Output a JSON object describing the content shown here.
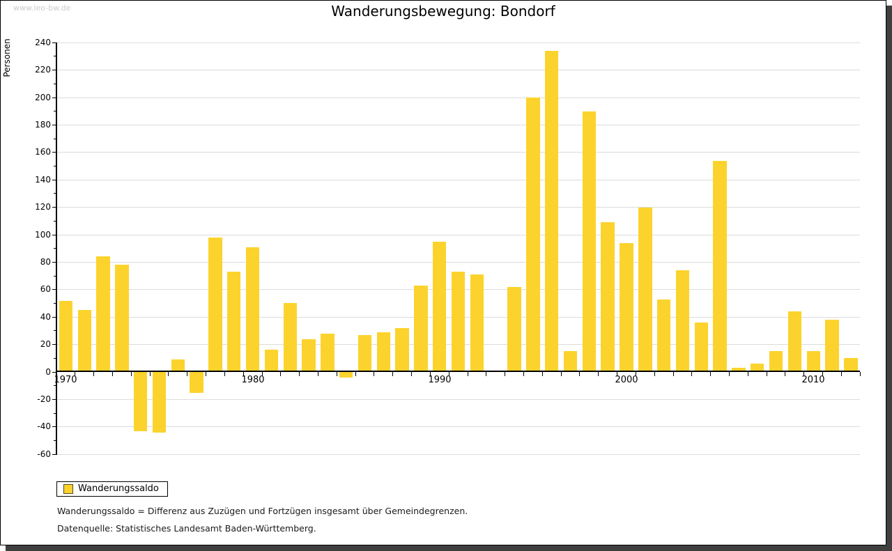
{
  "watermark": "www.leo-bw.de",
  "header": {
    "title": "Wanderungsbewegung: Bondorf"
  },
  "chart_data": {
    "type": "bar",
    "title": "Wanderungsbewegung: Bondorf",
    "ylabel": "Personen",
    "xlabel": "",
    "x": [
      1970,
      1971,
      1972,
      1973,
      1974,
      1975,
      1976,
      1977,
      1978,
      1979,
      1980,
      1981,
      1982,
      1983,
      1984,
      1985,
      1986,
      1987,
      1988,
      1989,
      1990,
      1991,
      1992,
      1993,
      1994,
      1995,
      1996,
      1997,
      1998,
      1999,
      2000,
      2001,
      2002,
      2003,
      2004,
      2005,
      2006,
      2007,
      2008,
      2009,
      2010,
      2011,
      2012
    ],
    "series": [
      {
        "name": "Wanderungssaldo",
        "values": [
          51,
          44,
          83,
          77,
          -43,
          -44,
          8,
          -15,
          97,
          72,
          90,
          15,
          49,
          23,
          27,
          -4,
          26,
          28,
          31,
          62,
          94,
          72,
          70,
          0,
          61,
          199,
          233,
          14,
          189,
          108,
          93,
          119,
          52,
          73,
          35,
          153,
          2,
          5,
          14,
          43,
          14,
          37,
          9
        ]
      }
    ],
    "ylim": [
      -60,
      240
    ],
    "ytick_step": 20,
    "ytick_minor_step": 10,
    "xticks": [
      1970,
      1980,
      1990,
      2000,
      2010
    ],
    "grid": true,
    "legend_position": "bottom-left"
  },
  "legend": {
    "items": [
      {
        "label": "Wanderungssaldo",
        "color": "#FCD32C",
        "border": "#4C4C26"
      }
    ]
  },
  "notes": [
    "Wanderungssaldo = Differenz aus Zuzügen und Fortzügen insgesamt über Gemeindegrenzen.",
    "Datenquelle: Statistisches Landesamt Baden-Württemberg."
  ],
  "colors": {
    "bar": "#FCD32C",
    "grid": "#DCDCDC",
    "axis": "#000000",
    "watermark": "#CCCCCC",
    "frame_shadow": "#3F3F3F"
  }
}
